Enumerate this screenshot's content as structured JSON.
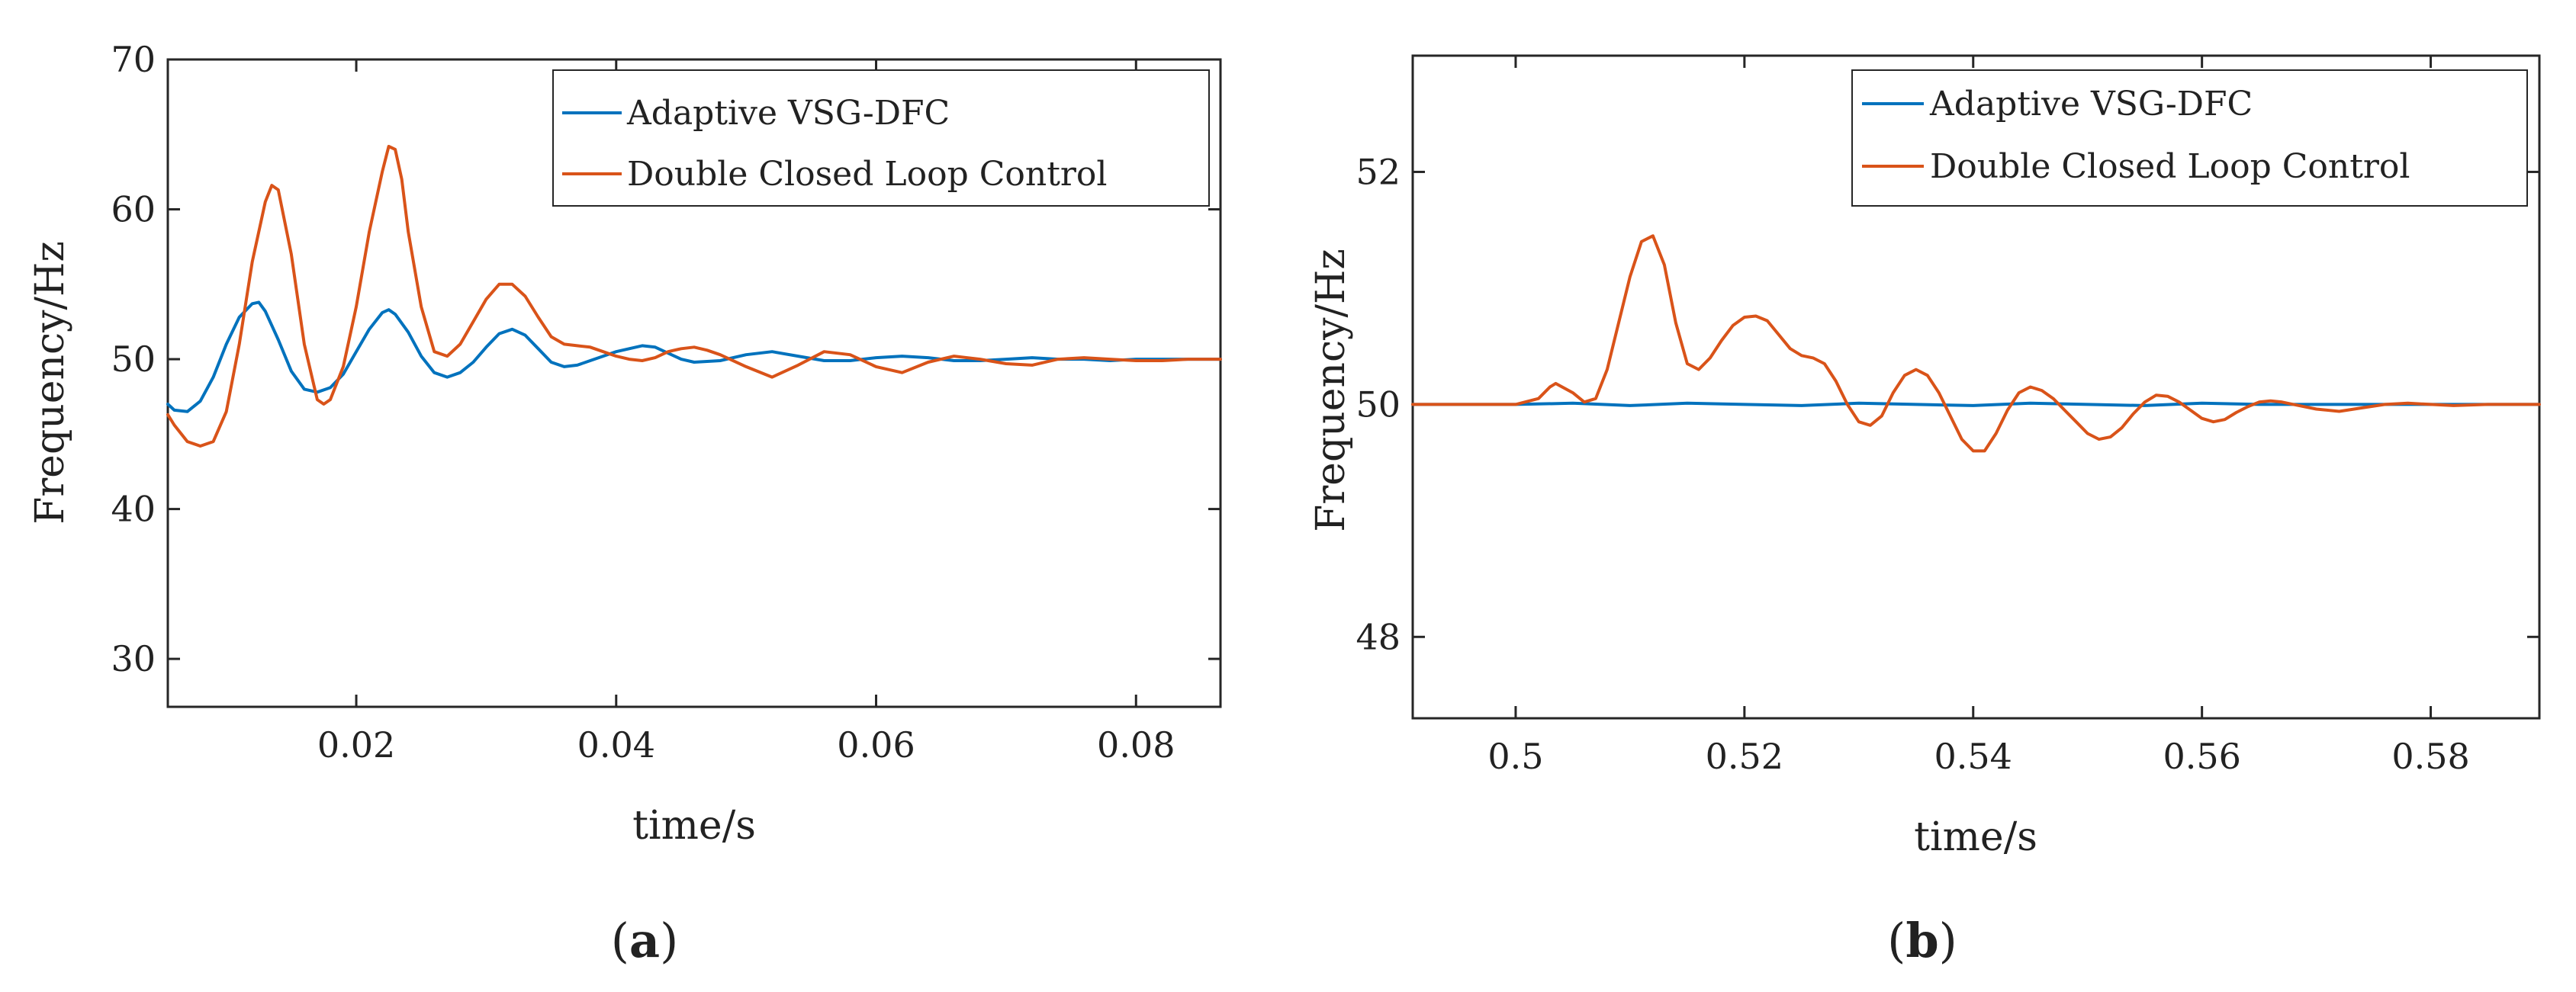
{
  "colors": {
    "adaptive": "#0072BD",
    "double_loop": "#D95319",
    "axis": "#262626",
    "text": "#222222"
  },
  "chart_data": [
    {
      "type": "line",
      "panel": "a",
      "caption_open": "(",
      "caption_letter": "a",
      "caption_close": ")",
      "xlabel": "time/s",
      "ylabel": "Frequency/Hz",
      "xlim": [
        0.0055,
        0.0865
      ],
      "ylim": [
        26.8,
        70.0
      ],
      "xticks": [
        0.02,
        0.04,
        0.06,
        0.08
      ],
      "xtick_labels": [
        "0.02",
        "0.04",
        "0.06",
        "0.08"
      ],
      "yticks": [
        30,
        40,
        50,
        60,
        70
      ],
      "ytick_labels": [
        "30",
        "40",
        "50",
        "60",
        "70"
      ],
      "legend": [
        "Adaptive VSG-DFC",
        "Double Closed Loop Control"
      ],
      "legend_position": "top-right",
      "series": [
        {
          "name": "Adaptive VSG-DFC",
          "x": [
            0.0055,
            0.006,
            0.007,
            0.008,
            0.009,
            0.01,
            0.011,
            0.012,
            0.0125,
            0.013,
            0.014,
            0.015,
            0.016,
            0.017,
            0.018,
            0.019,
            0.02,
            0.021,
            0.022,
            0.0225,
            0.023,
            0.024,
            0.025,
            0.026,
            0.027,
            0.028,
            0.029,
            0.03,
            0.031,
            0.032,
            0.033,
            0.034,
            0.035,
            0.036,
            0.037,
            0.038,
            0.039,
            0.04,
            0.041,
            0.042,
            0.043,
            0.044,
            0.045,
            0.046,
            0.048,
            0.05,
            0.052,
            0.054,
            0.056,
            0.058,
            0.06,
            0.062,
            0.064,
            0.066,
            0.068,
            0.07,
            0.072,
            0.074,
            0.076,
            0.078,
            0.08,
            0.082,
            0.084,
            0.0865
          ],
          "y": [
            47.0,
            46.6,
            46.5,
            47.2,
            48.8,
            51.0,
            52.8,
            53.7,
            53.8,
            53.2,
            51.3,
            49.2,
            48.0,
            47.8,
            48.1,
            49.0,
            50.5,
            52.0,
            53.1,
            53.3,
            53.0,
            51.8,
            50.2,
            49.1,
            48.8,
            49.1,
            49.8,
            50.8,
            51.7,
            52.0,
            51.6,
            50.7,
            49.8,
            49.5,
            49.6,
            49.9,
            50.2,
            50.5,
            50.7,
            50.9,
            50.8,
            50.4,
            50.0,
            49.8,
            49.9,
            50.3,
            50.5,
            50.2,
            49.9,
            49.9,
            50.1,
            50.2,
            50.1,
            49.9,
            49.9,
            50.0,
            50.1,
            50.0,
            50.0,
            49.9,
            50.0,
            50.0,
            50.0,
            50.0
          ]
        },
        {
          "name": "Double Closed Loop Control",
          "x": [
            0.0055,
            0.006,
            0.007,
            0.008,
            0.009,
            0.01,
            0.011,
            0.012,
            0.013,
            0.0135,
            0.014,
            0.015,
            0.016,
            0.017,
            0.0175,
            0.018,
            0.019,
            0.02,
            0.021,
            0.022,
            0.0225,
            0.023,
            0.0235,
            0.024,
            0.025,
            0.026,
            0.027,
            0.028,
            0.029,
            0.03,
            0.031,
            0.032,
            0.033,
            0.034,
            0.035,
            0.036,
            0.037,
            0.038,
            0.039,
            0.04,
            0.041,
            0.042,
            0.043,
            0.044,
            0.045,
            0.046,
            0.047,
            0.048,
            0.05,
            0.052,
            0.054,
            0.056,
            0.058,
            0.06,
            0.062,
            0.064,
            0.066,
            0.068,
            0.07,
            0.072,
            0.074,
            0.076,
            0.078,
            0.08,
            0.082,
            0.084,
            0.0865
          ],
          "y": [
            46.3,
            45.6,
            44.5,
            44.2,
            44.5,
            46.5,
            51.0,
            56.5,
            60.5,
            61.6,
            61.3,
            57.0,
            51.0,
            47.3,
            47.0,
            47.3,
            49.5,
            53.5,
            58.5,
            62.5,
            64.2,
            64.0,
            62.0,
            58.5,
            53.5,
            50.5,
            50.2,
            51.0,
            52.5,
            54.0,
            55.0,
            55.0,
            54.2,
            52.8,
            51.5,
            51.0,
            50.9,
            50.8,
            50.5,
            50.2,
            50.0,
            49.9,
            50.1,
            50.5,
            50.7,
            50.8,
            50.6,
            50.3,
            49.5,
            48.8,
            49.6,
            50.5,
            50.3,
            49.5,
            49.1,
            49.8,
            50.2,
            50.0,
            49.7,
            49.6,
            50.0,
            50.1,
            50.0,
            49.9,
            49.9,
            50.0,
            50.0
          ]
        }
      ]
    },
    {
      "type": "line",
      "panel": "b",
      "caption_open": "(",
      "caption_letter": "b",
      "caption_close": ")",
      "xlabel": "time/s",
      "ylabel": "Frequency/Hz",
      "xlim": [
        0.491,
        0.5895
      ],
      "ylim": [
        47.3,
        53.0
      ],
      "xticks": [
        0.5,
        0.52,
        0.54,
        0.56,
        0.58
      ],
      "xtick_labels": [
        "0.5",
        "0.52",
        "0.54",
        "0.56",
        "0.58"
      ],
      "yticks": [
        48,
        50,
        52
      ],
      "ytick_labels": [
        "48",
        "50",
        "52"
      ],
      "legend": [
        "Adaptive VSG-DFC",
        "Double Closed Loop Control"
      ],
      "legend_position": "top-right",
      "series": [
        {
          "name": "Adaptive VSG-DFC",
          "x": [
            0.491,
            0.5,
            0.505,
            0.51,
            0.515,
            0.52,
            0.525,
            0.53,
            0.535,
            0.54,
            0.545,
            0.55,
            0.555,
            0.56,
            0.565,
            0.57,
            0.575,
            0.58,
            0.585,
            0.5895
          ],
          "y": [
            50.0,
            50.0,
            50.01,
            49.99,
            50.01,
            50.0,
            49.99,
            50.01,
            50.0,
            49.99,
            50.01,
            50.0,
            49.99,
            50.01,
            50.0,
            50.0,
            50.0,
            50.0,
            50.0,
            50.0
          ]
        },
        {
          "name": "Double Closed Loop Control",
          "x": [
            0.491,
            0.5,
            0.502,
            0.503,
            0.5035,
            0.505,
            0.506,
            0.507,
            0.508,
            0.509,
            0.51,
            0.511,
            0.512,
            0.513,
            0.514,
            0.515,
            0.516,
            0.517,
            0.518,
            0.519,
            0.52,
            0.521,
            0.522,
            0.523,
            0.524,
            0.525,
            0.526,
            0.527,
            0.528,
            0.529,
            0.53,
            0.531,
            0.532,
            0.533,
            0.534,
            0.535,
            0.536,
            0.537,
            0.538,
            0.539,
            0.54,
            0.541,
            0.542,
            0.543,
            0.544,
            0.545,
            0.546,
            0.547,
            0.548,
            0.549,
            0.55,
            0.551,
            0.552,
            0.553,
            0.554,
            0.555,
            0.556,
            0.557,
            0.558,
            0.559,
            0.56,
            0.561,
            0.562,
            0.563,
            0.564,
            0.565,
            0.566,
            0.567,
            0.568,
            0.57,
            0.572,
            0.574,
            0.576,
            0.578,
            0.58,
            0.582,
            0.585,
            0.5895
          ],
          "y": [
            50.0,
            50.0,
            50.05,
            50.15,
            50.18,
            50.1,
            50.02,
            50.05,
            50.3,
            50.7,
            51.1,
            51.4,
            51.45,
            51.2,
            50.7,
            50.35,
            50.3,
            50.4,
            50.55,
            50.68,
            50.75,
            50.76,
            50.72,
            50.6,
            50.48,
            50.42,
            50.4,
            50.35,
            50.2,
            50.0,
            49.85,
            49.82,
            49.9,
            50.1,
            50.25,
            50.3,
            50.25,
            50.1,
            49.9,
            49.7,
            49.6,
            49.6,
            49.75,
            49.95,
            50.1,
            50.15,
            50.12,
            50.05,
            49.95,
            49.85,
            49.75,
            49.7,
            49.72,
            49.8,
            49.92,
            50.02,
            50.08,
            50.07,
            50.02,
            49.95,
            49.88,
            49.85,
            49.87,
            49.93,
            49.98,
            50.02,
            50.03,
            50.02,
            50.0,
            49.96,
            49.94,
            49.97,
            50.0,
            50.01,
            50.0,
            49.99,
            50.0,
            50.0
          ]
        }
      ]
    }
  ]
}
